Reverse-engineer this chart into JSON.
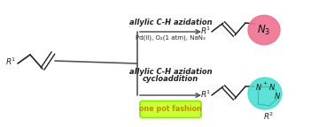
{
  "bg_color": "#ffffff",
  "top_label": "allylic C-H azidation",
  "top_conditions": "Pd(II), O₂(1 atm), NaN₃",
  "bottom_label_line1": "allylic C-H azidation",
  "bottom_label_line2": "cycloaddition",
  "one_pot_text": "one pot fashion",
  "one_pot_bg": "#ccff33",
  "one_pot_border": "#88ee00",
  "one_pot_text_color": "#cc8800",
  "top_circle_color": "#f07090",
  "bottom_circle_color": "#40ddd0",
  "bond_color": "#222222",
  "arrow_color": "#555555",
  "fork_color": "#555555"
}
